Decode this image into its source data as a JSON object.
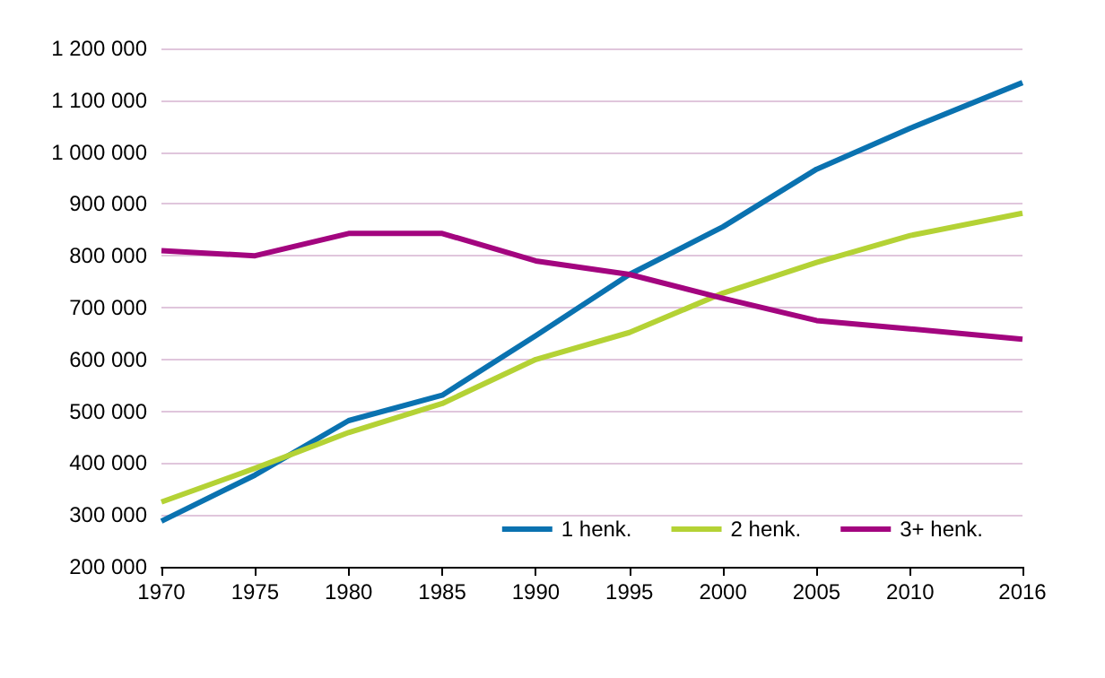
{
  "chart_data": {
    "type": "line",
    "x": [
      1970,
      1975,
      1980,
      1985,
      1990,
      1995,
      2000,
      2005,
      2010,
      2016
    ],
    "series": [
      {
        "name": "1 henk.",
        "color": "#0a72b0",
        "values": [
          288000,
          377000,
          482000,
          531000,
          646000,
          764000,
          856000,
          967000,
          1046000,
          1134000
        ]
      },
      {
        "name": "2 henk.",
        "color": "#b4d235",
        "values": [
          325000,
          390000,
          459000,
          515000,
          600000,
          652000,
          728000,
          787000,
          839000,
          882000
        ]
      },
      {
        "name": "3+ henk.",
        "color": "#a3057f",
        "values": [
          810000,
          800000,
          843000,
          843000,
          790000,
          764000,
          718000,
          675000,
          659000,
          639000
        ]
      }
    ],
    "xlim": [
      1970,
      2016
    ],
    "xticks": [
      1970,
      1975,
      1980,
      1985,
      1990,
      1995,
      2000,
      2005,
      2010,
      2016
    ],
    "ylim": [
      200000,
      1200000
    ],
    "yticks": [
      {
        "value": 200000,
        "label": "200 000"
      },
      {
        "value": 300000,
        "label": "300 000"
      },
      {
        "value": 400000,
        "label": "400 000"
      },
      {
        "value": 500000,
        "label": "500 000"
      },
      {
        "value": 600000,
        "label": "600 000"
      },
      {
        "value": 700000,
        "label": "700 000"
      },
      {
        "value": 800000,
        "label": "800 000"
      },
      {
        "value": 900000,
        "label": "900 000"
      },
      {
        "value": 1000000,
        "label": "1 000 000"
      },
      {
        "value": 1100000,
        "label": "1 100 000"
      },
      {
        "value": 1200000,
        "label": "1 200 000"
      }
    ],
    "grid": "y",
    "legend": "bottom right",
    "marker": "none",
    "line_style": "solid"
  }
}
